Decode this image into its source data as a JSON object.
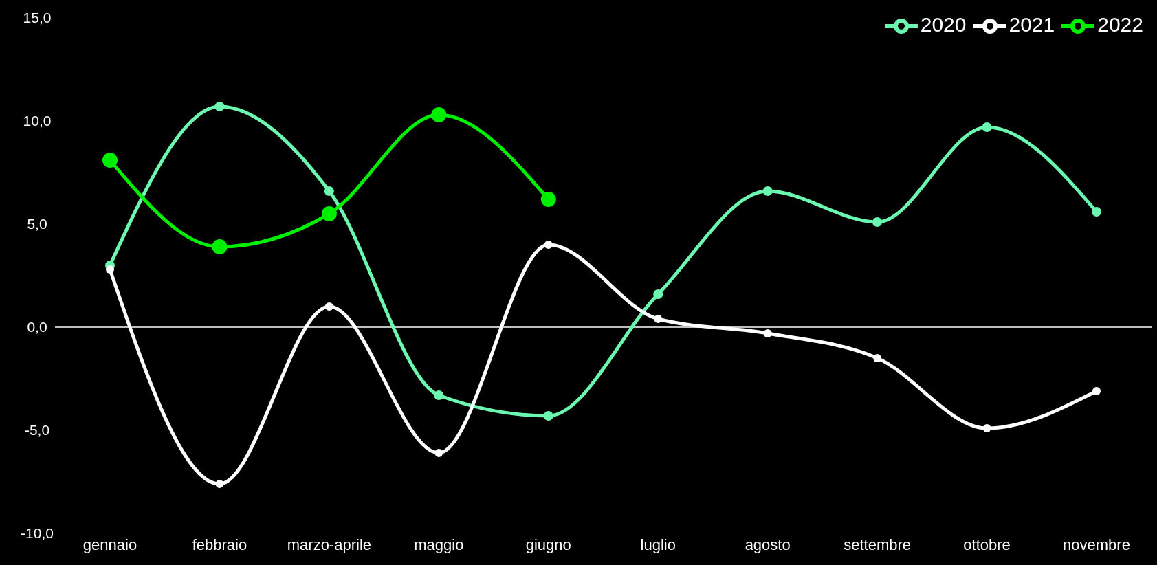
{
  "chart_data": {
    "type": "line",
    "categories": [
      "gennaio",
      "febbraio",
      "marzo-aprile",
      "maggio",
      "giugno",
      "luglio",
      "agosto",
      "settembre",
      "ottobre",
      "novembre"
    ],
    "series": [
      {
        "name": "2020",
        "color": "#6bf7b0",
        "values": [
          3.0,
          10.7,
          6.6,
          -3.3,
          -4.3,
          1.6,
          6.6,
          5.1,
          9.7,
          5.6
        ]
      },
      {
        "name": "2021",
        "color": "#ffffff",
        "values": [
          2.8,
          -7.6,
          1.0,
          -6.1,
          4.0,
          0.4,
          -0.3,
          -1.5,
          -4.9,
          -3.1
        ]
      },
      {
        "name": "2022",
        "color": "#00ee00",
        "values": [
          8.1,
          3.9,
          5.5,
          10.3,
          6.2,
          null,
          null,
          null,
          null,
          null
        ]
      }
    ],
    "ylim": [
      -10,
      15
    ],
    "yticks": [
      {
        "value": -10,
        "label": "-10,0"
      },
      {
        "value": -5,
        "label": "-5,0"
      },
      {
        "value": 0,
        "label": "0,0"
      },
      {
        "value": 5,
        "label": "5,0"
      },
      {
        "value": 10,
        "label": "10,0"
      },
      {
        "value": 15,
        "label": "15,0"
      }
    ],
    "ref_lines": [
      {
        "axis": "y",
        "value": 0,
        "color": "#ffffff"
      }
    ],
    "grid": false,
    "legend": "top right",
    "marker": "circle",
    "line_style": "solid"
  }
}
